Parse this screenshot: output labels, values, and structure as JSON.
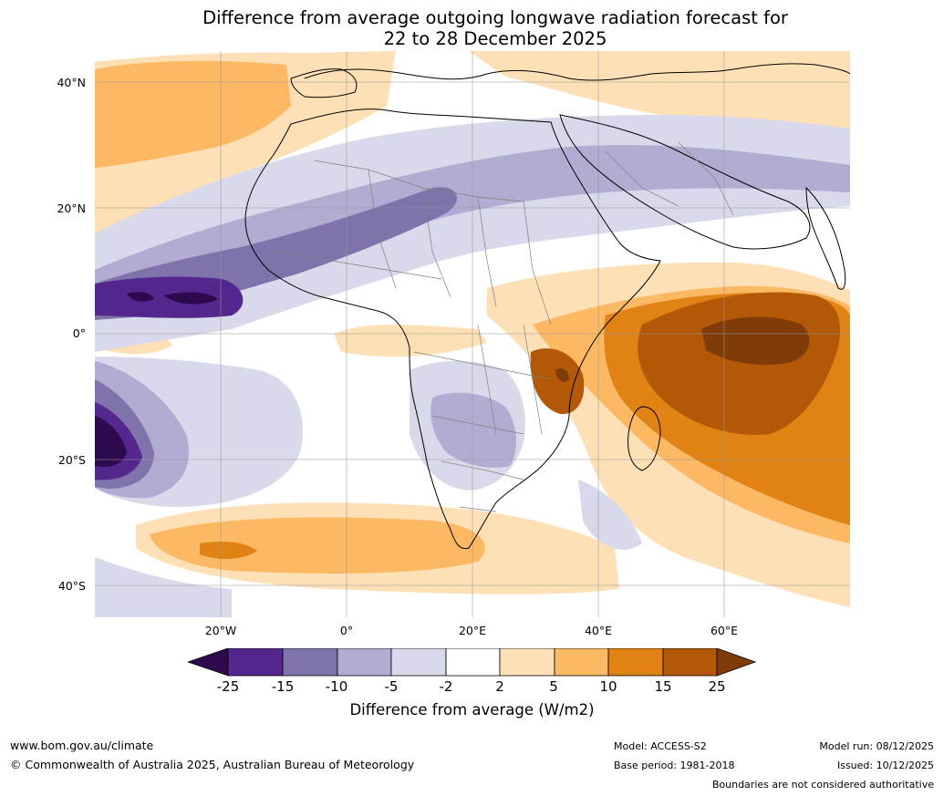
{
  "title": {
    "line1": "Difference from average outgoing longwave radiation forecast for",
    "line2": "22 to 28 December 2025"
  },
  "axes": {
    "lat_labels": [
      "40°N",
      "20°N",
      "0°",
      "20°S",
      "40°S"
    ],
    "lon_labels": [
      "20°W",
      "0°",
      "20°E",
      "40°E",
      "60°E"
    ]
  },
  "colorbar": {
    "ticks": [
      "-25",
      "-15",
      "-10",
      "-5",
      "-2",
      "2",
      "5",
      "10",
      "15",
      "25"
    ],
    "label": "Difference from average (W/m2)",
    "colors": [
      "#2d0a4e",
      "#54278f",
      "#8073ac",
      "#b2abd2",
      "#d8daeb",
      "#ffffff",
      "#fee0b6",
      "#fdb863",
      "#e08214",
      "#b35806",
      "#7f3b08"
    ]
  },
  "footer": {
    "website": "www.bom.gov.au/climate",
    "copyright": "© Commonwealth of Australia 2025, Australian Bureau of Meteorology",
    "model": "Model: ACCESS-S2",
    "base_period": "Base period: 1981-2018",
    "model_run": "Model run: 08/12/2025",
    "issued": "Issued: 10/12/2025",
    "boundaries": "Boundaries are not considered authoritative"
  }
}
